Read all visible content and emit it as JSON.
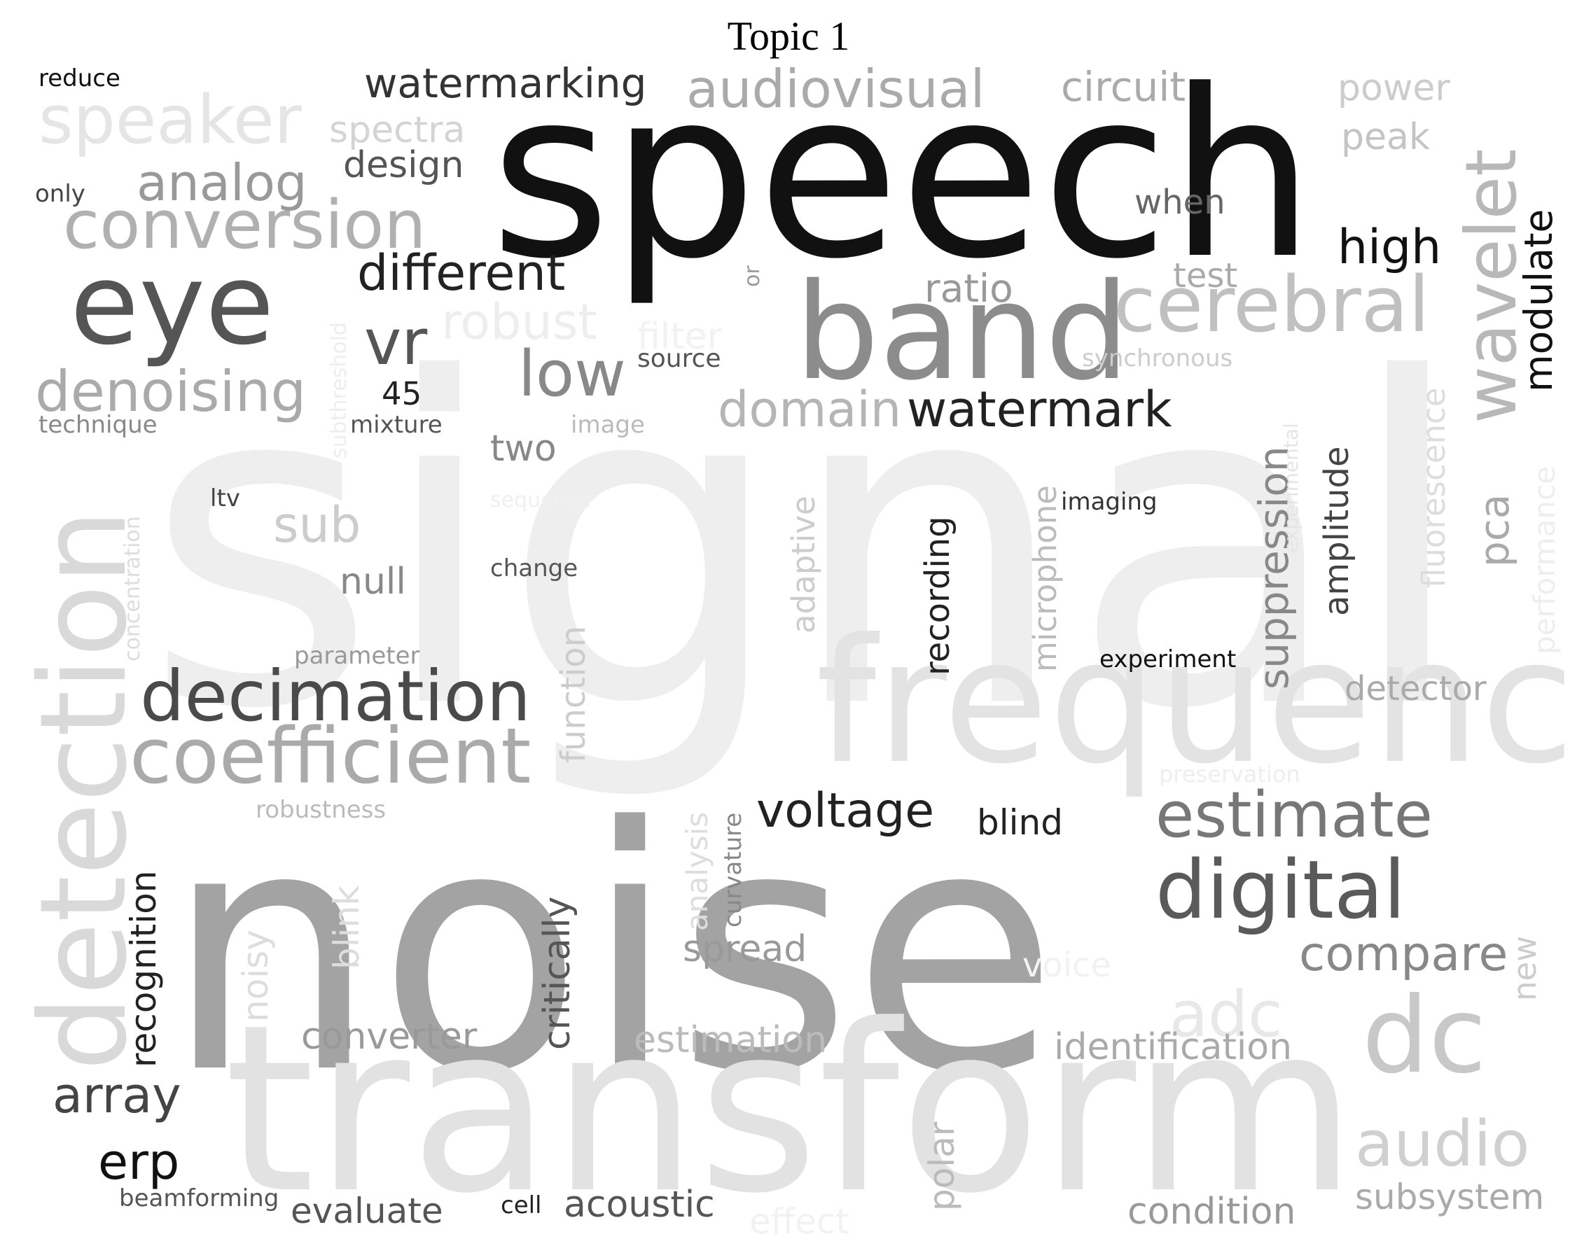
{
  "title": "Topic 1",
  "words": [
    {
      "text": "signal",
      "color": "#eeeeee"
    },
    {
      "text": "noise",
      "color": "#a3a3a3"
    },
    {
      "text": "transform",
      "color": "#e2e2e2"
    },
    {
      "text": "frequency",
      "color": "#e3e3e3"
    },
    {
      "text": "speech",
      "color": "#111111"
    },
    {
      "text": "band",
      "color": "#8c8c8c"
    },
    {
      "text": "eye",
      "color": "#555555"
    },
    {
      "text": "detection",
      "color": "#d9d9d9"
    },
    {
      "text": "dc",
      "color": "#c8c8c8"
    },
    {
      "text": "digital",
      "color": "#5a5a5a"
    },
    {
      "text": "coefficient",
      "color": "#aaaaaa"
    },
    {
      "text": "decimation",
      "color": "#4a4a4a"
    },
    {
      "text": "conversion",
      "color": "#b0b0b0"
    },
    {
      "text": "cerebral",
      "color": "#c0c0c0"
    },
    {
      "text": "wavelet",
      "color": "#b8b8b8"
    },
    {
      "text": "estimate",
      "color": "#777777"
    },
    {
      "text": "audio",
      "color": "#d0d0d0"
    },
    {
      "text": "speaker",
      "color": "#e5e5e5"
    },
    {
      "text": "audiovisual",
      "color": "#aaaaaa"
    },
    {
      "text": "low",
      "color": "#888888"
    },
    {
      "text": "denoising",
      "color": "#aaaaaa"
    },
    {
      "text": "vr",
      "color": "#555555"
    },
    {
      "text": "different",
      "color": "#222222"
    },
    {
      "text": "watermark",
      "color": "#222222"
    },
    {
      "text": "domain",
      "color": "#b5b5b5"
    },
    {
      "text": "adc",
      "color": "#e8e8e8"
    },
    {
      "text": "analog",
      "color": "#999999"
    },
    {
      "text": "watermarking",
      "color": "#333333"
    },
    {
      "text": "compare",
      "color": "#888888"
    },
    {
      "text": "array",
      "color": "#444444"
    },
    {
      "text": "erp",
      "color": "#111111"
    },
    {
      "text": "voltage",
      "color": "#222222"
    },
    {
      "text": "robust",
      "color": "#eeeeee"
    },
    {
      "text": "circuit",
      "color": "#aaaaaa"
    },
    {
      "text": "high",
      "color": "#111111"
    },
    {
      "text": "modulate",
      "color": "#111111"
    },
    {
      "text": "suppression",
      "color": "#888888"
    },
    {
      "text": "pca",
      "color": "#aaaaaa"
    },
    {
      "text": "ratio",
      "color": "#999999"
    },
    {
      "text": "power",
      "color": "#cccccc"
    },
    {
      "text": "peak",
      "color": "#c4c4c4"
    },
    {
      "text": "design",
      "color": "#555555"
    },
    {
      "text": "spectra",
      "color": "#d4d4d4"
    },
    {
      "text": "identification",
      "color": "#aaaaaa"
    },
    {
      "text": "estimation",
      "color": "#bbbbbb"
    },
    {
      "text": "converter",
      "color": "#999999"
    },
    {
      "text": "acoustic",
      "color": "#555555"
    },
    {
      "text": "evaluate",
      "color": "#555555"
    },
    {
      "text": "condition",
      "color": "#999999"
    },
    {
      "text": "subsystem",
      "color": "#aaaaaa"
    },
    {
      "text": "spread",
      "color": "#999999"
    },
    {
      "text": "critically",
      "color": "#555555"
    },
    {
      "text": "recognition",
      "color": "#222222"
    },
    {
      "text": "sub",
      "color": "#cccccc"
    },
    {
      "text": "null",
      "color": "#888888"
    },
    {
      "text": "two",
      "color": "#888888"
    },
    {
      "text": "test",
      "color": "#aaaaaa"
    },
    {
      "text": "when",
      "color": "#666666"
    },
    {
      "text": "blind",
      "color": "#222222"
    },
    {
      "text": "recording",
      "color": "#222222"
    },
    {
      "text": "amplitude",
      "color": "#444444"
    },
    {
      "text": "detector",
      "color": "#aaaaaa"
    },
    {
      "text": "adaptive",
      "color": "#cccccc"
    },
    {
      "text": "microphone",
      "color": "#bbbbbb"
    },
    {
      "text": "fluorescence",
      "color": "#dddddd"
    },
    {
      "text": "function",
      "color": "#cccccc"
    },
    {
      "text": "blink",
      "color": "#dddddd"
    },
    {
      "text": "noisy",
      "color": "#dddddd"
    },
    {
      "text": "polar",
      "color": "#bbbbbb"
    },
    {
      "text": "new",
      "color": "#cccccc"
    },
    {
      "text": "45",
      "color": "#222222"
    },
    {
      "text": "voice",
      "color": "#f2f2f2"
    },
    {
      "text": "filter",
      "color": "#f2f2f2"
    },
    {
      "text": "effect",
      "color": "#f2f2f2"
    },
    {
      "text": "analysis",
      "color": "#dddddd"
    },
    {
      "text": "performance",
      "color": "#eeeeee"
    },
    {
      "text": "source",
      "color": "#555555"
    },
    {
      "text": "synchronous",
      "color": "#cccccc"
    },
    {
      "text": "technique",
      "color": "#888888"
    },
    {
      "text": "mixture",
      "color": "#555555"
    },
    {
      "text": "image",
      "color": "#bbbbbb"
    },
    {
      "text": "ltv",
      "color": "#444444"
    },
    {
      "text": "change",
      "color": "#555555"
    },
    {
      "text": "parameter",
      "color": "#999999"
    },
    {
      "text": "robustness",
      "color": "#bbbbbb"
    },
    {
      "text": "imaging",
      "color": "#333333"
    },
    {
      "text": "experiment",
      "color": "#111111"
    },
    {
      "text": "preservation",
      "color": "#eeeeee"
    },
    {
      "text": "reduce",
      "color": "#111111"
    },
    {
      "text": "only",
      "color": "#444444"
    },
    {
      "text": "beamforming",
      "color": "#555555"
    },
    {
      "text": "cell",
      "color": "#222222"
    },
    {
      "text": "curvature",
      "color": "#888888"
    },
    {
      "text": "concentration",
      "color": "#dddddd"
    },
    {
      "text": "subthreshold",
      "color": "#eeeeee"
    },
    {
      "text": "experimental",
      "color": "#e5e5e5"
    },
    {
      "text": "sequence",
      "color": "#f0f0f0"
    },
    {
      "text": "or",
      "color": "#999999"
    }
  ]
}
